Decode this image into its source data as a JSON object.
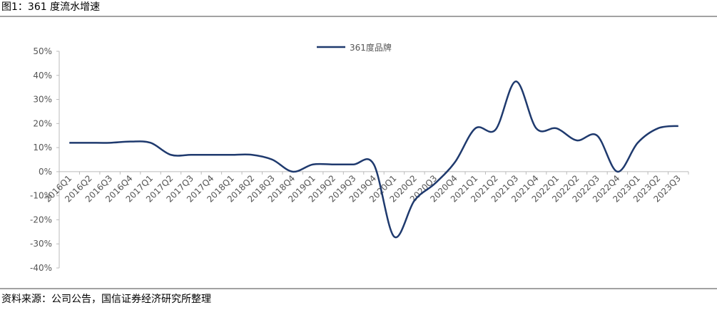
{
  "header": "图1：361 度流水增速",
  "footer": "资料来源：公司公告，国信证券经济研究所整理",
  "chart_data": {
    "type": "line",
    "categories": [
      "2016Q1",
      "2016Q2",
      "2016Q3",
      "2016Q4",
      "2017Q1",
      "2017Q2",
      "2017Q3",
      "2017Q4",
      "2018Q1",
      "2018Q2",
      "2018Q3",
      "2018Q4",
      "2019Q1",
      "2019Q2",
      "2019Q3",
      "2019Q4",
      "2020Q1",
      "2020Q2",
      "2020Q3",
      "2020Q4",
      "2021Q1",
      "2021Q2",
      "2021Q3",
      "2021Q4",
      "2022Q1",
      "2022Q2",
      "2022Q3",
      "2022Q4",
      "2023Q1",
      "2023Q2",
      "2023Q3"
    ],
    "series": [
      {
        "name": "361度品牌",
        "color": "#1f3a6e",
        "values": [
          12,
          12,
          12,
          12.5,
          12,
          7,
          7,
          7,
          7,
          7,
          5,
          0,
          3,
          3,
          3,
          3,
          -27,
          -12,
          -5,
          4,
          18,
          17.5,
          37.5,
          18,
          18,
          13,
          15,
          0,
          12,
          18,
          19
        ]
      }
    ],
    "ylim": [
      -40,
      50
    ],
    "yticks": [
      {
        "value": -40,
        "label": "-40%"
      },
      {
        "value": -30,
        "label": "-30%"
      },
      {
        "value": -20,
        "label": "-20%"
      },
      {
        "value": -10,
        "label": "-10%"
      },
      {
        "value": 0,
        "label": "0%"
      },
      {
        "value": 10,
        "label": "10%"
      },
      {
        "value": 20,
        "label": "20%"
      },
      {
        "value": 30,
        "label": "30%"
      },
      {
        "value": 40,
        "label": "40%"
      },
      {
        "value": 50,
        "label": "50%"
      }
    ],
    "legend": "top"
  }
}
